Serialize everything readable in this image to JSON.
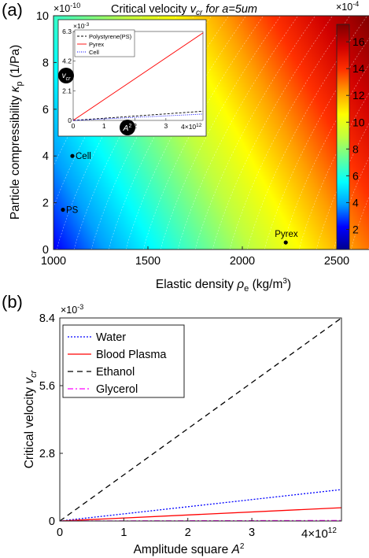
{
  "chart_data": [
    {
      "panel_label": "(a)",
      "type": "heatmap",
      "title": "Critical velocity v_cr for a=5um",
      "title_parts": {
        "main": "Critical velocity ",
        "var": "v",
        "sub": "cr",
        "rest": " for a=5um"
      },
      "xlabel": {
        "main": "Elastic density ",
        "sym": "ρ",
        "sub": "e",
        "unit": " (kg/m",
        "sup": "3",
        "close": ")"
      },
      "ylabel": {
        "main": "Particle compressibility ",
        "sym": "κ",
        "sub": "p",
        "unit": " (1/Pa)"
      },
      "xlim": [
        1000,
        2500
      ],
      "ylim": [
        0,
        10
      ],
      "y_exponent": {
        "base": "×10",
        "exp": "-10"
      },
      "xticks": [
        "1000",
        "1500",
        "2000",
        "2500"
      ],
      "yticks": [
        "0",
        "2",
        "4",
        "6",
        "8",
        "10"
      ],
      "colorbar": {
        "exponent": {
          "base": "×10",
          "exp": "-4"
        },
        "ticks": [
          "2",
          "4",
          "6",
          "8",
          "10",
          "12",
          "14",
          "16"
        ],
        "range": [
          0.5,
          17.3
        ],
        "colormap": [
          "#00008f",
          "#0000ff",
          "#00a0ff",
          "#00ffff",
          "#60ff9f",
          "#c0ff40",
          "#ffff00",
          "#ffa000",
          "#ff3000",
          "#d00000",
          "#800000"
        ]
      },
      "points": [
        {
          "label": "Cell",
          "x": 1100,
          "y": 4.0
        },
        {
          "label": "PS",
          "x": 1050,
          "y": 1.7
        },
        {
          "label": "Pyrex",
          "x": 2230,
          "y": 0.3
        }
      ],
      "inset": {
        "type": "line",
        "xlim": [
          0,
          4.2
        ],
        "ylim": [
          0,
          6.3
        ],
        "x_exponent": {
          "base": "4×10",
          "exp": "12"
        },
        "y_exponent": {
          "base": "×10",
          "exp": "-3"
        },
        "xticks": [
          "0",
          "1",
          "2",
          "3"
        ],
        "yticks": [
          "0",
          "2.1",
          "4.2",
          "6.3"
        ],
        "xlabel": {
          "main": "A",
          "sup": "2"
        },
        "ylabel": {
          "main": "v",
          "sub": "cr"
        },
        "series": [
          {
            "name": "Polystyrene(PS)",
            "color": "#000000",
            "dash": "3,2",
            "x": [
              0,
              4.2
            ],
            "y": [
              0,
              0.65
            ]
          },
          {
            "name": "Pyrex",
            "color": "#ff0000",
            "dash": "",
            "x": [
              0,
              4.2
            ],
            "y": [
              0,
              6.2
            ]
          },
          {
            "name": "Cell",
            "color": "#0000ff",
            "dash": "1,1.5",
            "x": [
              0,
              4.2
            ],
            "y": [
              0,
              0.45
            ]
          }
        ]
      }
    },
    {
      "panel_label": "(b)",
      "type": "line",
      "ylabel": {
        "main": "Critical velocity ",
        "var": "v",
        "sub": "cr"
      },
      "xlabel": {
        "main": "Amplitude square ",
        "var": "A",
        "sup": "2"
      },
      "xlim": [
        0,
        4.4
      ],
      "ylim": [
        0,
        8.4
      ],
      "x_exponent": {
        "base": "4×10",
        "exp": "12"
      },
      "y_exponent": {
        "base": "×10",
        "exp": "-3"
      },
      "xticks": [
        "0",
        "1",
        "2",
        "3"
      ],
      "yticks": [
        "0",
        "2.8",
        "5.6",
        "8.4"
      ],
      "series": [
        {
          "name": "Water",
          "color": "#0000ff",
          "dash": "2,2",
          "x": [
            0,
            4.4
          ],
          "y": [
            0,
            1.3
          ]
        },
        {
          "name": "Blood Plasma",
          "color": "#ff0000",
          "dash": "",
          "x": [
            0,
            4.4
          ],
          "y": [
            0,
            0.55
          ]
        },
        {
          "name": "Ethanol",
          "color": "#000000",
          "dash": "7,5",
          "x": [
            0,
            4.4
          ],
          "y": [
            0,
            8.4
          ]
        },
        {
          "name": "Glycerol",
          "color": "#ff00ff",
          "dash": "7,3,2,3",
          "x": [
            0,
            4.4
          ],
          "y": [
            0,
            0.02
          ]
        }
      ]
    }
  ]
}
